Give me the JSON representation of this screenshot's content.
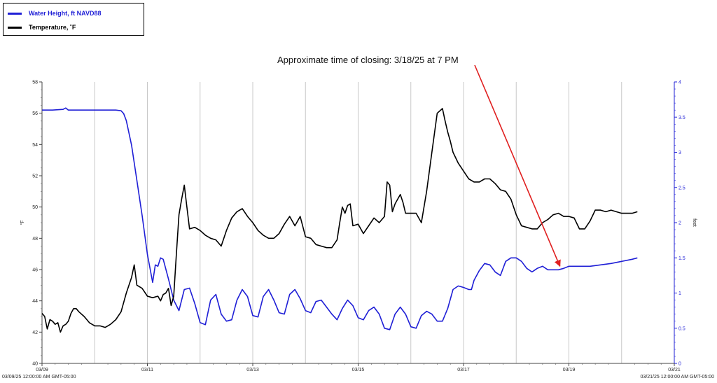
{
  "legend": {
    "items": [
      {
        "label": "Water Height, ft NAVD88",
        "color": "#1f1fd6"
      },
      {
        "label": "Temperature, ˚F",
        "color": "#000000"
      }
    ]
  },
  "annotation": {
    "text": "Approximate time of closing: 3/18/25 at 7 PM",
    "arrow_color": "#e02020",
    "arrow_target": {
      "day": 18.83,
      "value": 1.35
    }
  },
  "corner_labels": {
    "left": "03/09/25 12:00:00 AM GMT-05:00",
    "right": "03/21/25 12:00:00 AM GMT-05:00"
  },
  "chart_data": {
    "type": "line",
    "x_axis": {
      "range": [
        9,
        21
      ],
      "tick_labels": [
        "03/09",
        "03/11",
        "03/13",
        "03/15",
        "03/17",
        "03/19",
        "03/21"
      ],
      "tick_positions": [
        9,
        11,
        13,
        15,
        17,
        19,
        21
      ],
      "gridlines": [
        10,
        11,
        12,
        13,
        14,
        15,
        16,
        17,
        18,
        19,
        20
      ]
    },
    "y_left": {
      "label": "°F",
      "range": [
        40,
        58
      ],
      "ticks": [
        "40",
        "42",
        "44",
        "46",
        "48",
        "50",
        "52",
        "54",
        "56",
        "58"
      ]
    },
    "y_right": {
      "label": "feet",
      "range": [
        0,
        4
      ],
      "ticks": [
        "0",
        "0.5",
        "1",
        "1.5",
        "2",
        "2.5",
        "3",
        "3.5",
        "4"
      ]
    },
    "grid": "vertical",
    "legend_position": "top-left",
    "series": [
      {
        "name": "Water Height, ft NAVD88",
        "axis": "right",
        "color": "#1f1fd6",
        "x": [
          9.0,
          9.2,
          9.4,
          9.45,
          9.5,
          9.7,
          9.9,
          10.1,
          10.3,
          10.4,
          10.5,
          10.55,
          10.6,
          10.7,
          10.8,
          10.9,
          11.0,
          11.1,
          11.15,
          11.2,
          11.25,
          11.3,
          11.4,
          11.5,
          11.6,
          11.7,
          11.8,
          11.9,
          12.0,
          12.1,
          12.2,
          12.3,
          12.4,
          12.5,
          12.6,
          12.7,
          12.8,
          12.9,
          13.0,
          13.1,
          13.2,
          13.3,
          13.4,
          13.5,
          13.6,
          13.7,
          13.8,
          13.9,
          14.0,
          14.1,
          14.2,
          14.3,
          14.4,
          14.5,
          14.6,
          14.7,
          14.8,
          14.9,
          15.0,
          15.1,
          15.2,
          15.3,
          15.4,
          15.5,
          15.6,
          15.7,
          15.8,
          15.9,
          16.0,
          16.1,
          16.2,
          16.3,
          16.4,
          16.5,
          16.6,
          16.7,
          16.8,
          16.9,
          17.0,
          17.1,
          17.15,
          17.2,
          17.3,
          17.4,
          17.5,
          17.6,
          17.7,
          17.8,
          17.9,
          18.0,
          18.1,
          18.2,
          18.3,
          18.4,
          18.5,
          18.6,
          18.7,
          18.8,
          18.9,
          19.0,
          19.2,
          19.4,
          19.6,
          19.8,
          20.0,
          20.2,
          20.3
        ],
        "values": [
          3.6,
          3.6,
          3.61,
          3.63,
          3.6,
          3.6,
          3.6,
          3.6,
          3.6,
          3.6,
          3.59,
          3.55,
          3.45,
          3.1,
          2.6,
          2.1,
          1.55,
          1.15,
          1.4,
          1.38,
          1.5,
          1.48,
          1.2,
          0.9,
          0.75,
          1.05,
          1.07,
          0.85,
          0.58,
          0.55,
          0.9,
          0.98,
          0.7,
          0.6,
          0.62,
          0.9,
          1.05,
          0.95,
          0.68,
          0.66,
          0.95,
          1.05,
          0.9,
          0.72,
          0.7,
          0.98,
          1.05,
          0.92,
          0.75,
          0.72,
          0.88,
          0.9,
          0.8,
          0.7,
          0.62,
          0.78,
          0.9,
          0.82,
          0.65,
          0.62,
          0.75,
          0.8,
          0.7,
          0.5,
          0.48,
          0.7,
          0.8,
          0.7,
          0.52,
          0.5,
          0.68,
          0.74,
          0.7,
          0.6,
          0.6,
          0.78,
          1.05,
          1.1,
          1.08,
          1.05,
          1.05,
          1.18,
          1.32,
          1.42,
          1.4,
          1.3,
          1.25,
          1.45,
          1.5,
          1.5,
          1.45,
          1.35,
          1.3,
          1.35,
          1.38,
          1.33,
          1.33,
          1.33,
          1.35,
          1.38,
          1.38,
          1.38,
          1.4,
          1.42,
          1.45,
          1.48,
          1.5
        ]
      },
      {
        "name": "Temperature, ˚F",
        "axis": "left",
        "color": "#000000",
        "x": [
          9.0,
          9.05,
          9.1,
          9.15,
          9.2,
          9.25,
          9.3,
          9.35,
          9.4,
          9.45,
          9.5,
          9.55,
          9.6,
          9.65,
          9.7,
          9.8,
          9.9,
          10.0,
          10.1,
          10.2,
          10.3,
          10.4,
          10.5,
          10.6,
          10.7,
          10.75,
          10.8,
          10.9,
          11.0,
          11.1,
          11.2,
          11.25,
          11.3,
          11.35,
          11.4,
          11.45,
          11.5,
          11.55,
          11.6,
          11.65,
          11.7,
          11.75,
          11.8,
          11.9,
          12.0,
          12.1,
          12.2,
          12.3,
          12.4,
          12.5,
          12.6,
          12.7,
          12.8,
          12.9,
          13.0,
          13.1,
          13.2,
          13.3,
          13.4,
          13.5,
          13.6,
          13.7,
          13.8,
          13.9,
          14.0,
          14.1,
          14.2,
          14.3,
          14.4,
          14.5,
          14.6,
          14.65,
          14.7,
          14.75,
          14.8,
          14.85,
          14.9,
          15.0,
          15.1,
          15.2,
          15.3,
          15.4,
          15.5,
          15.55,
          15.6,
          15.65,
          15.7,
          15.75,
          15.8,
          15.85,
          15.9,
          16.0,
          16.1,
          16.2,
          16.3,
          16.4,
          16.5,
          16.6,
          16.65,
          16.7,
          16.75,
          16.8,
          16.9,
          17.0,
          17.1,
          17.2,
          17.3,
          17.4,
          17.5,
          17.6,
          17.7,
          17.8,
          17.9,
          18.0,
          18.1,
          18.2,
          18.3,
          18.4,
          18.5,
          18.6,
          18.7,
          18.8,
          18.9,
          19.0,
          19.1,
          19.2,
          19.3,
          19.4,
          19.5,
          19.6,
          19.7,
          19.8,
          19.9,
          20.0,
          20.1,
          20.2,
          20.3
        ],
        "values": [
          43.2,
          43.0,
          42.2,
          42.8,
          42.7,
          42.5,
          42.6,
          42.0,
          42.4,
          42.5,
          42.7,
          43.2,
          43.5,
          43.5,
          43.3,
          43.0,
          42.6,
          42.4,
          42.4,
          42.3,
          42.5,
          42.8,
          43.3,
          44.5,
          45.5,
          46.3,
          45.0,
          44.8,
          44.3,
          44.2,
          44.3,
          44.0,
          44.4,
          44.5,
          44.8,
          43.7,
          44.3,
          47.0,
          49.5,
          50.5,
          51.4,
          50.0,
          48.6,
          48.7,
          48.5,
          48.2,
          48.0,
          47.9,
          47.5,
          48.5,
          49.3,
          49.7,
          49.9,
          49.4,
          49.0,
          48.5,
          48.2,
          48.0,
          48.0,
          48.3,
          48.9,
          49.4,
          48.8,
          49.4,
          48.1,
          48.0,
          47.6,
          47.5,
          47.4,
          47.4,
          47.9,
          49.0,
          50.0,
          49.6,
          50.1,
          50.2,
          48.8,
          48.9,
          48.3,
          48.8,
          49.3,
          49.0,
          49.4,
          51.6,
          51.4,
          49.7,
          50.2,
          50.5,
          50.8,
          50.3,
          49.6,
          49.6,
          49.6,
          49.0,
          51.0,
          53.5,
          56.0,
          56.3,
          55.5,
          54.8,
          54.2,
          53.5,
          52.8,
          52.3,
          51.8,
          51.6,
          51.6,
          51.8,
          51.8,
          51.5,
          51.1,
          51.0,
          50.5,
          49.5,
          48.8,
          48.7,
          48.6,
          48.6,
          49.0,
          49.2,
          49.5,
          49.6,
          49.4,
          49.4,
          49.3,
          48.6,
          48.6,
          49.1,
          49.8,
          49.8,
          49.7,
          49.8,
          49.7,
          49.6,
          49.6,
          49.6,
          49.7
        ]
      }
    ]
  }
}
